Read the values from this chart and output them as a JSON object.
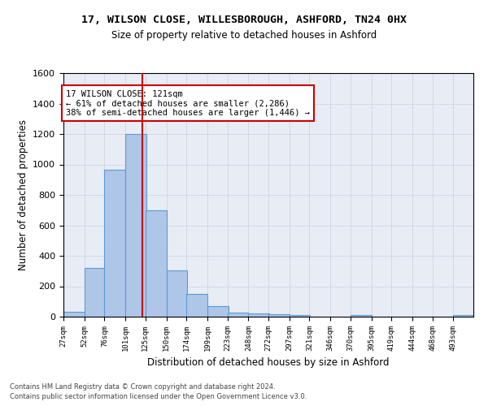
{
  "title1": "17, WILSON CLOSE, WILLESBOROUGH, ASHFORD, TN24 0HX",
  "title2": "Size of property relative to detached houses in Ashford",
  "xlabel": "Distribution of detached houses by size in Ashford",
  "ylabel": "Number of detached properties",
  "footer1": "Contains HM Land Registry data © Crown copyright and database right 2024.",
  "footer2": "Contains public sector information licensed under the Open Government Licence v3.0.",
  "annotation_line1": "17 WILSON CLOSE: 121sqm",
  "annotation_line2": "← 61% of detached houses are smaller (2,286)",
  "annotation_line3": "38% of semi-detached houses are larger (1,446) →",
  "property_size": 121,
  "bin_edges": [
    27,
    52,
    76,
    101,
    125,
    150,
    174,
    199,
    223,
    248,
    272,
    297,
    321,
    346,
    370,
    395,
    419,
    444,
    468,
    493,
    517
  ],
  "bar_values": [
    30,
    320,
    965,
    1200,
    700,
    305,
    150,
    70,
    28,
    20,
    15,
    10,
    0,
    0,
    12,
    0,
    0,
    0,
    0,
    12
  ],
  "bar_color": "#aec6e8",
  "bar_edge_color": "#5b9bd5",
  "vline_color": "#cc0000",
  "annotation_box_color": "#cc0000",
  "grid_color": "#d0d8e8",
  "background_color": "#e8ecf5",
  "ylim": [
    0,
    1600
  ],
  "yticks": [
    0,
    200,
    400,
    600,
    800,
    1000,
    1200,
    1400,
    1600
  ]
}
